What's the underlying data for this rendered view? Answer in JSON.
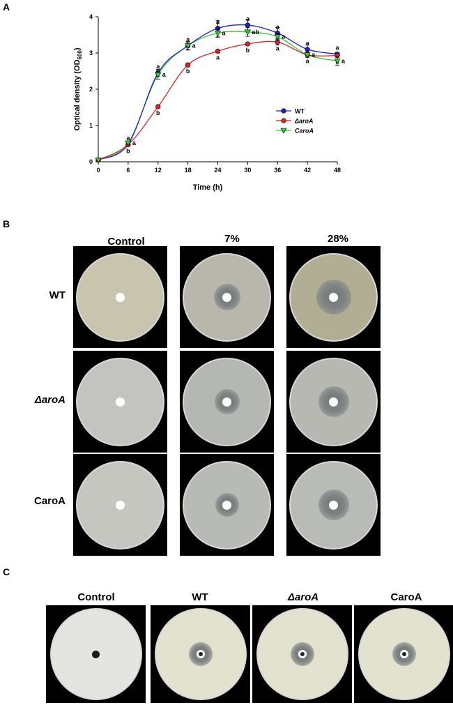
{
  "panels": {
    "a": "A",
    "b": "B",
    "c": "C"
  },
  "chart_data": {
    "type": "line",
    "xlabel": "Time (h)",
    "ylabel": "Optical density (OD",
    "ylabel_sub": "600",
    "ylabel_tail": ")",
    "x": [
      0,
      6,
      12,
      18,
      24,
      30,
      36,
      42,
      48
    ],
    "xlim": [
      0,
      48
    ],
    "ylim": [
      0,
      4
    ],
    "xticks": [
      0,
      6,
      12,
      18,
      24,
      30,
      36,
      42,
      48
    ],
    "yticks": [
      0,
      1,
      2,
      3,
      4
    ],
    "grid": false,
    "legend_position": "center-right",
    "series": [
      {
        "name": "WT",
        "color": "#1f1fcc",
        "marker": "circle",
        "values": [
          0.05,
          0.48,
          2.45,
          3.2,
          3.68,
          3.77,
          3.55,
          3.1,
          2.97
        ],
        "errors": [
          0.02,
          0.05,
          0.1,
          0.1,
          0.22,
          0.15,
          0.15,
          0.12,
          0.05
        ],
        "labels": [
          "",
          "a",
          "a",
          "a",
          "a",
          "a",
          "a",
          "a",
          "a"
        ]
      },
      {
        "name": "ΔaroA",
        "color": "#dd2222",
        "marker": "circle",
        "values": [
          0.05,
          0.47,
          1.52,
          2.67,
          3.05,
          3.25,
          3.3,
          2.95,
          2.93
        ],
        "errors": [
          0.02,
          0.03,
          0.04,
          0.05,
          0.04,
          0.04,
          0.08,
          0.05,
          0.05
        ],
        "labels": [
          "",
          "b",
          "b",
          "b",
          "a",
          "b",
          "a",
          "a",
          "a"
        ]
      },
      {
        "name": "CaroA",
        "color": "#33cc33",
        "marker": "triangle-down",
        "values": [
          0.05,
          0.52,
          2.4,
          3.2,
          3.55,
          3.58,
          3.45,
          2.95,
          2.78
        ],
        "errors": [
          0.02,
          0.04,
          0.12,
          0.12,
          0.12,
          0.12,
          0.1,
          0.08,
          0.12
        ],
        "labels": [
          "",
          "a",
          "a",
          "a",
          "a",
          "ab",
          "a",
          "a",
          "a"
        ]
      }
    ]
  },
  "panel_b": {
    "columns": [
      "Control",
      "7%",
      "28%"
    ],
    "rows": [
      "WT",
      "ΔaroA",
      "CaroA"
    ]
  },
  "panel_c": {
    "columns": [
      "Control",
      "WT",
      "ΔaroA",
      "CaroA"
    ]
  }
}
